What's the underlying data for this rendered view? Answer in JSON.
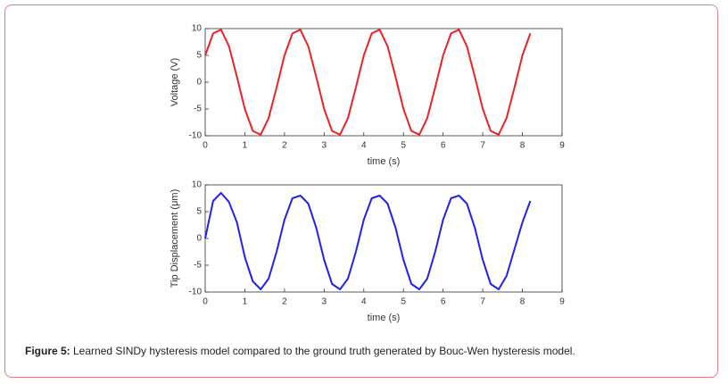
{
  "chart_data": [
    {
      "type": "line",
      "ylabel": "Voltage (V)",
      "xlabel": "time (s)",
      "x": [
        0,
        0.2,
        0.4,
        0.6,
        0.8,
        1,
        1.2,
        1.4,
        1.6,
        1.8,
        2,
        2.2,
        2.4,
        2.6,
        2.8,
        3,
        3.2,
        3.4,
        3.6,
        3.8,
        4,
        4.2,
        4.4,
        4.6,
        4.8,
        5,
        5.2,
        5.4,
        5.6,
        5.8,
        6,
        6.2,
        6.4,
        6.6,
        6.8,
        7,
        7.2,
        7.4,
        7.6,
        7.8,
        8,
        8.2
      ],
      "series": [
        {
          "color": "#ee2222",
          "values": [
            5.0,
            9.1,
            9.8,
            6.7,
            1.0,
            -5.0,
            -9.1,
            -9.8,
            -6.7,
            -1.0,
            5.0,
            9.1,
            9.8,
            6.7,
            1.0,
            -5.0,
            -9.1,
            -9.8,
            -6.7,
            -1.0,
            5.0,
            9.1,
            9.8,
            6.7,
            1.0,
            -5.0,
            -9.1,
            -9.8,
            -6.7,
            -1.0,
            5.0,
            9.1,
            9.8,
            6.7,
            1.0,
            -5.0,
            -9.1,
            -9.8,
            -6.7,
            -1.0,
            5.0,
            9.1
          ]
        }
      ],
      "xlim": [
        0,
        9
      ],
      "xticks": [
        0,
        1,
        2,
        3,
        4,
        5,
        6,
        7,
        8,
        9
      ],
      "ylim": [
        -10,
        10
      ],
      "yticks": [
        -10,
        -5,
        0,
        5,
        10
      ]
    },
    {
      "type": "line",
      "ylabel": "Tip Displacement (μm)",
      "xlabel": "time (s)",
      "x": [
        0,
        0.2,
        0.4,
        0.6,
        0.8,
        1,
        1.2,
        1.4,
        1.6,
        1.8,
        2,
        2.2,
        2.4,
        2.6,
        2.8,
        3,
        3.2,
        3.4,
        3.6,
        3.8,
        4,
        4.2,
        4.4,
        4.6,
        4.8,
        5,
        5.2,
        5.4,
        5.6,
        5.8,
        6,
        6.2,
        6.4,
        6.6,
        6.8,
        7,
        7.2,
        7.4,
        7.6,
        7.8,
        8,
        8.2
      ],
      "series": [
        {
          "color": "#2222ee",
          "values": [
            0,
            7.0,
            8.5,
            6.8,
            3.0,
            -3.5,
            -8.0,
            -9.5,
            -7.5,
            -2.5,
            3.5,
            7.5,
            8.0,
            6.5,
            2.0,
            -4.0,
            -8.5,
            -9.5,
            -7.5,
            -2.5,
            3.5,
            7.5,
            8.0,
            6.5,
            2.0,
            -4.0,
            -8.5,
            -9.5,
            -7.5,
            -2.5,
            3.5,
            7.5,
            8.0,
            6.5,
            2.0,
            -4.0,
            -8.5,
            -9.5,
            -7.0,
            -2.0,
            3.0,
            7.0
          ]
        }
      ],
      "xlim": [
        0,
        9
      ],
      "xticks": [
        0,
        1,
        2,
        3,
        4,
        5,
        6,
        7,
        8,
        9
      ],
      "ylim": [
        -10,
        10
      ],
      "yticks": [
        -10,
        -5,
        0,
        5,
        10
      ]
    }
  ],
  "caption": {
    "label": "Figure 5:",
    "text": " Learned SINDy hysteresis model compared to the ground truth generated by Bouc-Wen hysteresis model."
  }
}
